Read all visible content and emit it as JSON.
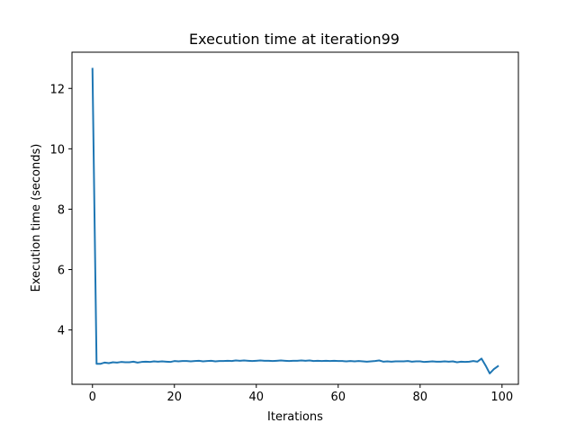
{
  "chart_data": {
    "type": "line",
    "title": "Execution time at iteration99",
    "xlabel": "Iterations",
    "ylabel": "Execution time (seconds)",
    "xlim": [
      -5,
      104
    ],
    "ylim": [
      2.2,
      13.2
    ],
    "xticks": [
      0,
      20,
      40,
      60,
      80,
      100
    ],
    "yticks": [
      4,
      6,
      8,
      10,
      12
    ],
    "grid": false,
    "line_color": "#1f77b4",
    "series": [
      {
        "x": [
          0,
          1,
          2,
          3,
          4,
          5,
          6,
          7,
          8,
          9,
          10,
          11,
          12,
          13,
          14,
          15,
          16,
          17,
          18,
          19,
          20,
          21,
          22,
          23,
          24,
          25,
          26,
          27,
          28,
          29,
          30,
          31,
          32,
          33,
          34,
          35,
          36,
          37,
          38,
          39,
          40,
          41,
          42,
          43,
          44,
          45,
          46,
          47,
          48,
          49,
          50,
          51,
          52,
          53,
          54,
          55,
          56,
          57,
          58,
          59,
          60,
          61,
          62,
          63,
          64,
          65,
          66,
          67,
          68,
          69,
          70,
          71,
          72,
          73,
          74,
          75,
          76,
          77,
          78,
          79,
          80,
          81,
          82,
          83,
          84,
          85,
          86,
          87,
          88,
          89,
          90,
          91,
          92,
          93,
          94,
          95,
          96,
          97,
          98,
          99
        ],
        "values": [
          12.65,
          2.88,
          2.88,
          2.92,
          2.9,
          2.93,
          2.92,
          2.94,
          2.93,
          2.93,
          2.95,
          2.92,
          2.94,
          2.95,
          2.94,
          2.96,
          2.95,
          2.96,
          2.95,
          2.94,
          2.97,
          2.96,
          2.97,
          2.97,
          2.96,
          2.97,
          2.98,
          2.96,
          2.97,
          2.98,
          2.96,
          2.97,
          2.97,
          2.98,
          2.97,
          2.99,
          2.98,
          2.99,
          2.98,
          2.97,
          2.98,
          2.99,
          2.98,
          2.98,
          2.97,
          2.98,
          2.99,
          2.98,
          2.97,
          2.98,
          2.98,
          2.99,
          2.98,
          2.99,
          2.97,
          2.98,
          2.97,
          2.98,
          2.97,
          2.98,
          2.97,
          2.97,
          2.96,
          2.97,
          2.96,
          2.97,
          2.96,
          2.95,
          2.96,
          2.97,
          2.99,
          2.95,
          2.96,
          2.95,
          2.96,
          2.96,
          2.96,
          2.97,
          2.95,
          2.96,
          2.96,
          2.94,
          2.95,
          2.96,
          2.95,
          2.95,
          2.96,
          2.95,
          2.96,
          2.93,
          2.95,
          2.94,
          2.95,
          2.97,
          2.95,
          3.05,
          2.82,
          2.56,
          2.7,
          2.8
        ]
      }
    ]
  }
}
